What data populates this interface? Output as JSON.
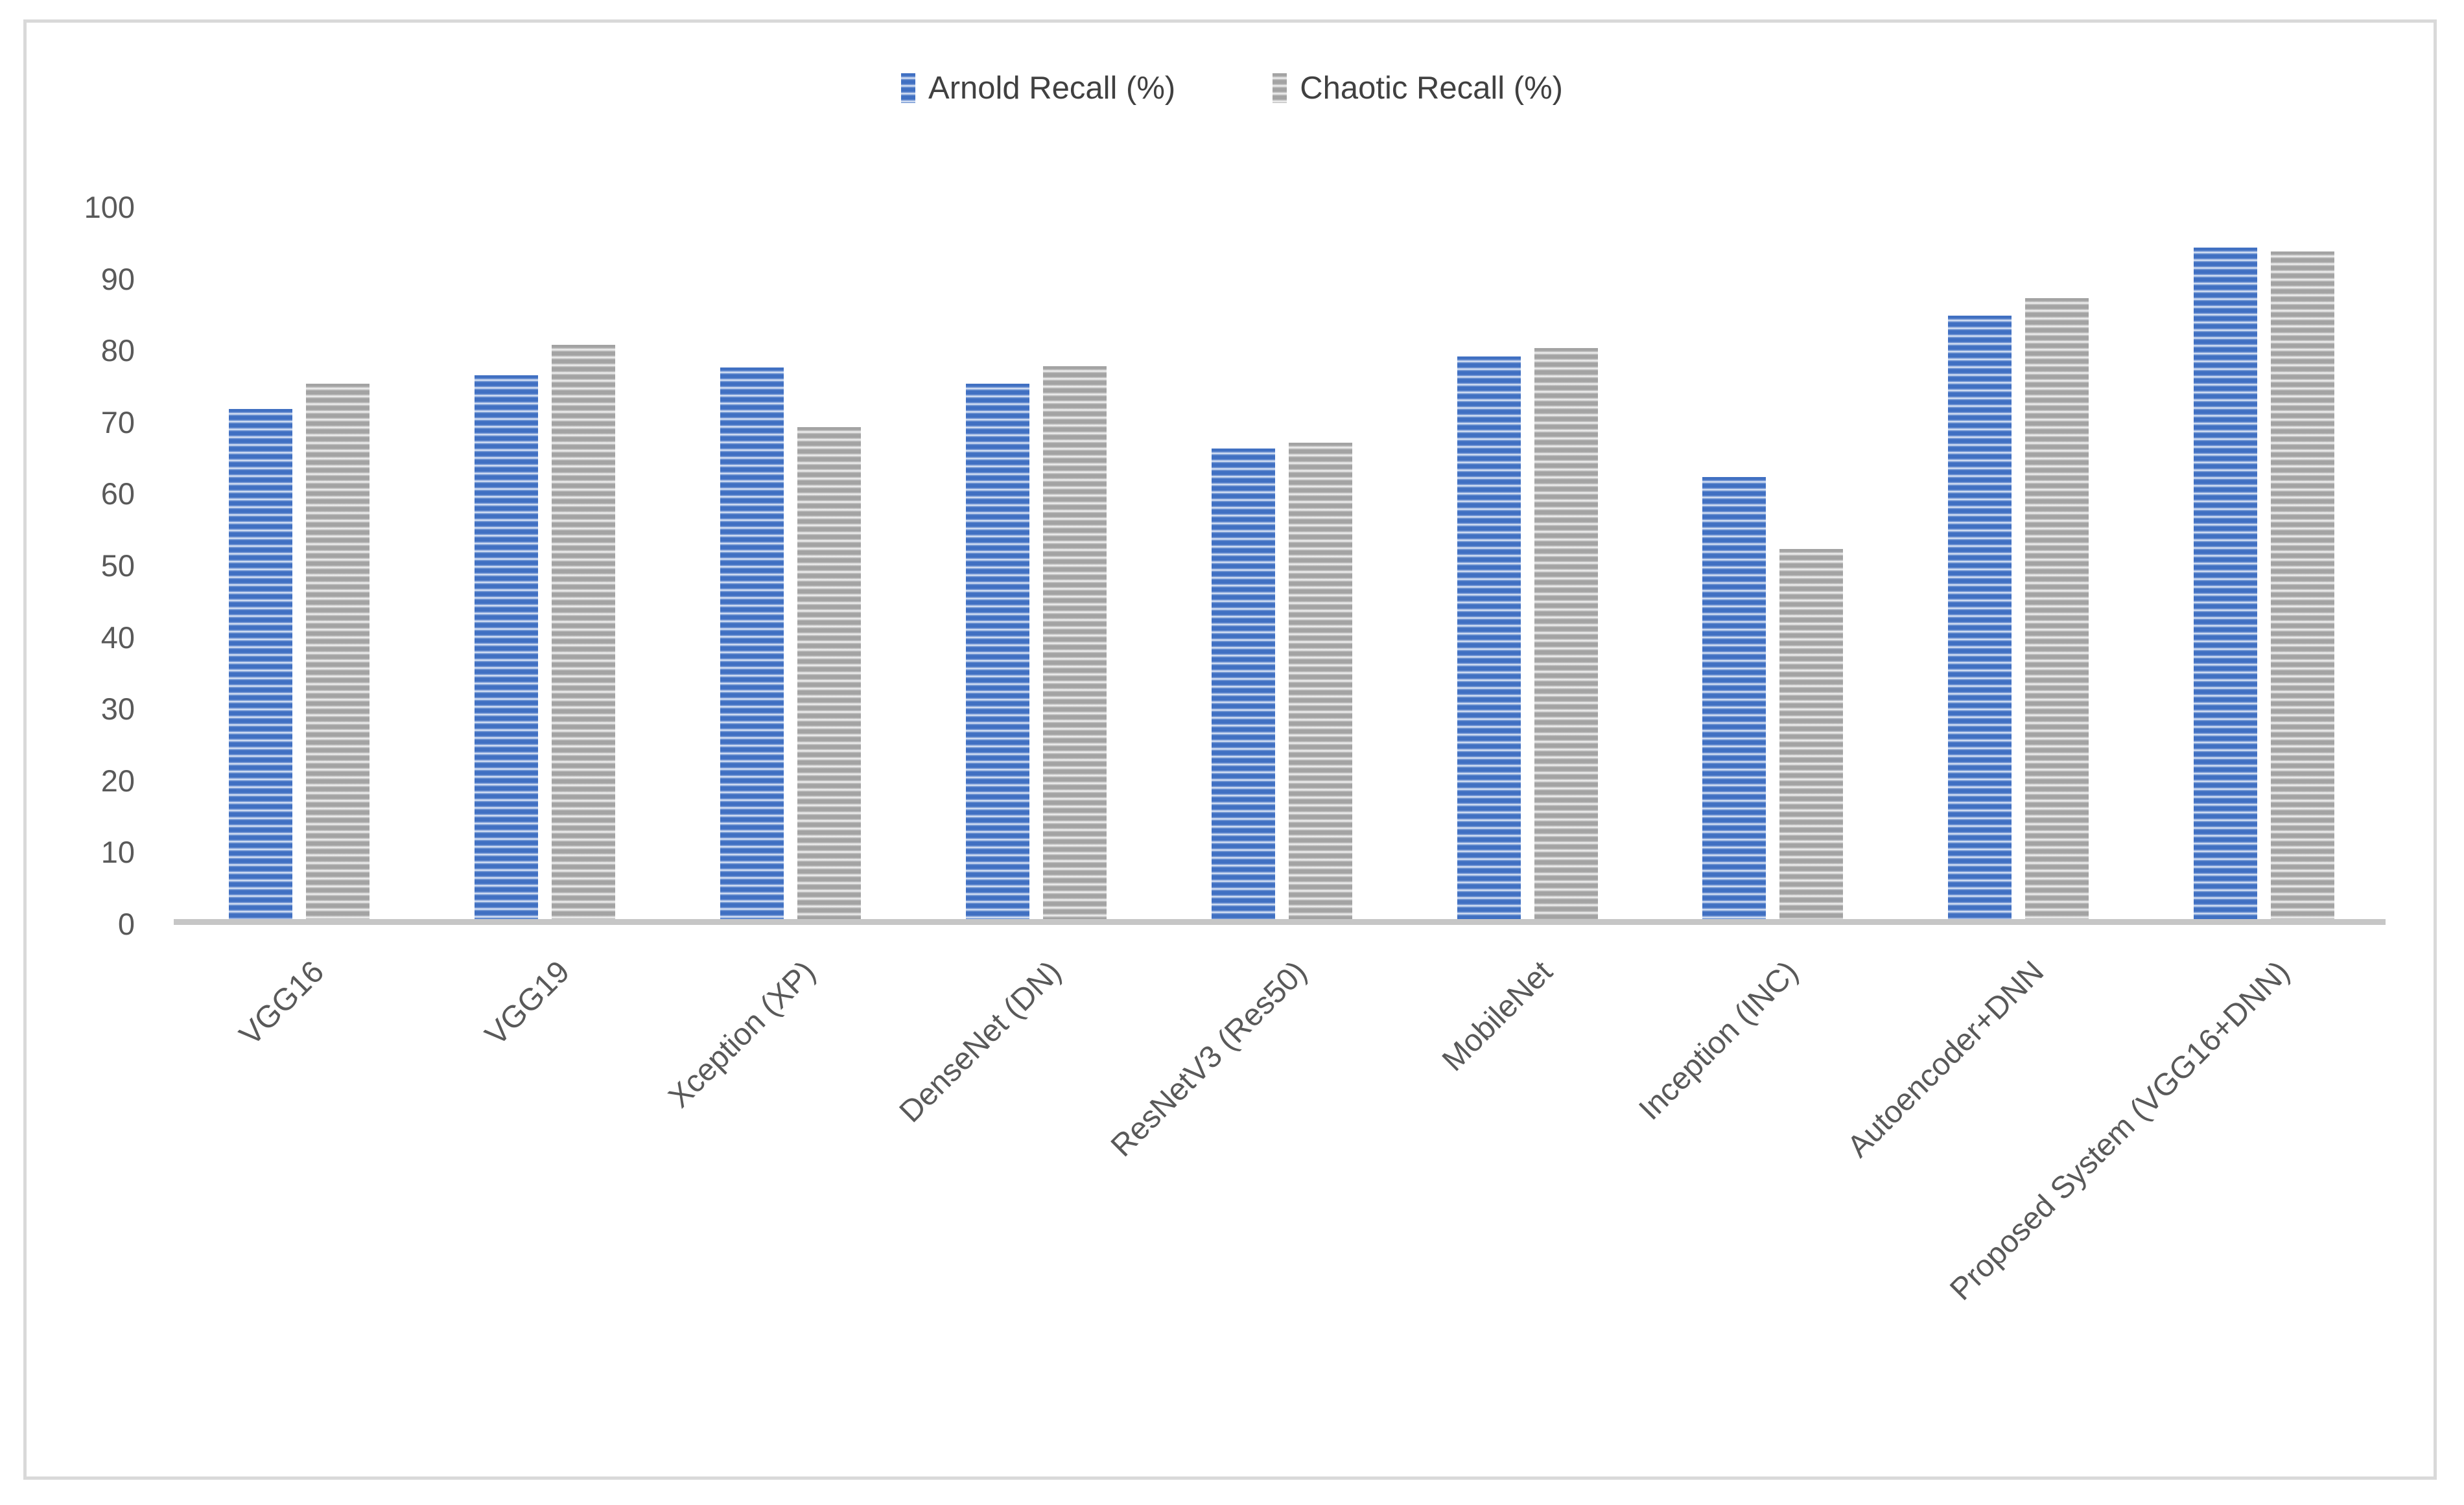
{
  "chart_data": {
    "type": "bar",
    "title": "",
    "categories": [
      "VGG16",
      "VGG19",
      "Xception (XP)",
      "DenseNet (DN)",
      "ResNetV3 (Res50)",
      "MobileNet",
      "Inception (INC)",
      "Autoencoder+DNN",
      "Proposed System (VGG16+DNN)"
    ],
    "series": [
      {
        "name": "Arnold Recall (%)",
        "color": "#4472C4",
        "pattern": "light-horizontal-stripes",
        "values": [
          71.5,
          76.2,
          77.3,
          75.0,
          66.0,
          78.8,
          62.0,
          84.5,
          94.0
        ]
      },
      {
        "name": "Chaotic Recall (%)",
        "color": "#A6A6A6",
        "pattern": "light-horizontal-stripes",
        "values": [
          75.0,
          80.5,
          69.0,
          77.5,
          66.8,
          80.0,
          52.0,
          87.0,
          93.5
        ]
      }
    ],
    "xlabel": "",
    "ylabel": "",
    "ylim": [
      0,
      100
    ],
    "yticks": [
      0,
      10,
      20,
      30,
      40,
      50,
      60,
      70,
      80,
      90,
      100
    ],
    "grid": false,
    "legend_position": "top-center",
    "category_label_rotation_deg": -45
  },
  "styling": {
    "frame_border_color": "#d9d9d9",
    "axis_line_color": "#c6c6c6",
    "tick_label_color": "#595959",
    "legend_text_color": "#404040",
    "background_color": "#ffffff"
  }
}
